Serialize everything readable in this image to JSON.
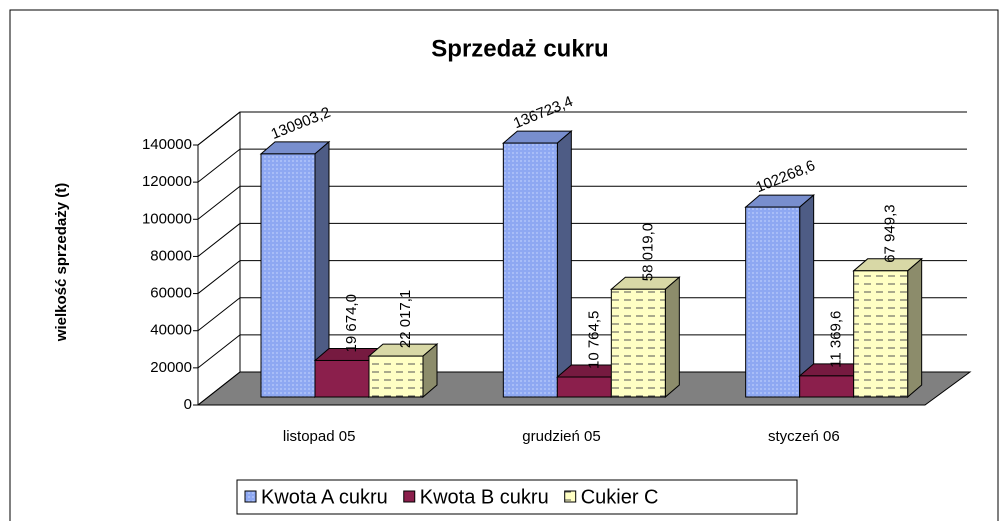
{
  "chart_data": {
    "type": "bar3d",
    "title": "Sprzedaż cukru",
    "y_label": "wielkość sprzedaży (t)",
    "categories": [
      "listopad 05",
      "grudzień 05",
      "styczeń 06"
    ],
    "series": [
      {
        "name": "Kwota A cukru",
        "color": "#8ea8f2",
        "values": [
          130903.2,
          136723.4,
          102268.6
        ],
        "value_labels": [
          "130903,2",
          "136723,4",
          "102268,6"
        ]
      },
      {
        "name": "Kwota B cukru",
        "color": "#8b1f4c",
        "values": [
          19674.0,
          10764.5,
          11369.6
        ],
        "value_labels": [
          "19 674,0",
          "10 764,5",
          "11 369,6"
        ]
      },
      {
        "name": "Cukier C",
        "color": "#ffffc4",
        "values": [
          22017.1,
          58019.0,
          67949.3
        ],
        "value_labels": [
          "22 017,1",
          "58 019,0",
          "67 949,3"
        ]
      }
    ],
    "ylim": [
      0,
      140000
    ],
    "yticks": [
      0,
      20000,
      40000,
      60000,
      80000,
      100000,
      120000,
      140000
    ],
    "grid": true,
    "legend": "bottom"
  }
}
